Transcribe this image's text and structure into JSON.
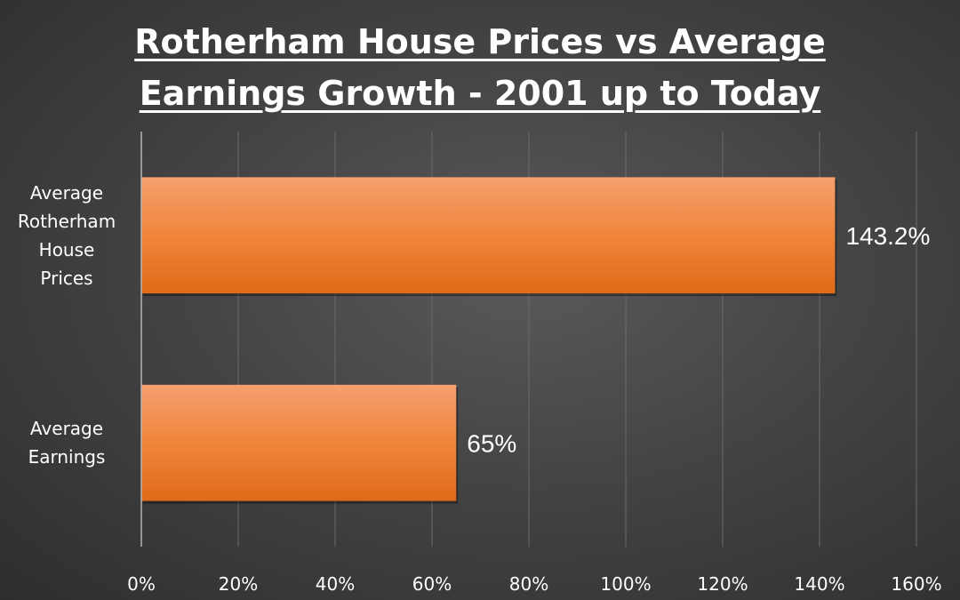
{
  "chart_data": {
    "type": "bar",
    "orientation": "horizontal",
    "title_lines": [
      "Rotherham House Prices vs Average",
      "Earnings Growth - 2001 up to Today"
    ],
    "categories": [
      [
        "Average",
        "Rotherham",
        "House",
        "Prices"
      ],
      [
        "Average",
        "Earnings"
      ]
    ],
    "values": [
      143.2,
      65
    ],
    "data_labels": [
      "143.2%",
      "65%"
    ],
    "xlim": [
      0,
      160
    ],
    "xticks": [
      0,
      20,
      40,
      60,
      80,
      100,
      120,
      140,
      160
    ],
    "xtick_labels": [
      "0%",
      "20%",
      "40%",
      "60%",
      "80%",
      "100%",
      "120%",
      "140%",
      "160%"
    ],
    "grid": true,
    "bar_color": "#ed7d31",
    "background_color": "#444444",
    "text_color": "#ffffff"
  }
}
